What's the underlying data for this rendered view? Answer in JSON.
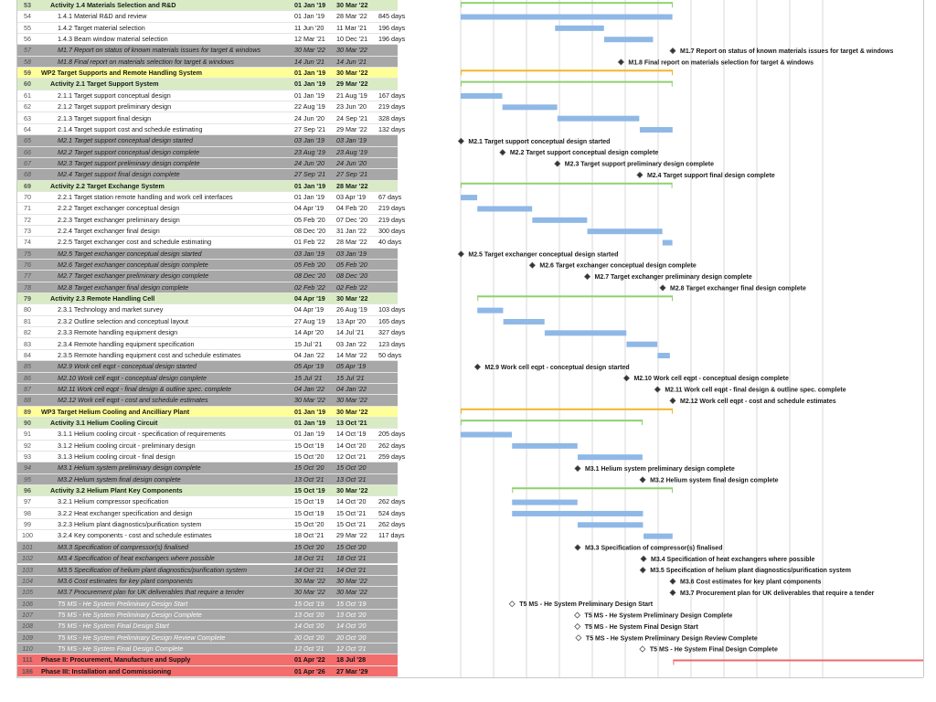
{
  "rows": [
    {
      "id": "53",
      "name": "Activity 1.4 Materials Selection and R&D",
      "start": "01 Jan '19",
      "finish": "30 Mar '22",
      "dur": "",
      "kind": "activity",
      "lvl": 1
    },
    {
      "id": "54",
      "name": "1.4.1 Material R&D and review",
      "start": "01 Jan '19",
      "finish": "28 Mar '22",
      "dur": "845 days",
      "kind": "task",
      "lvl": 2
    },
    {
      "id": "55",
      "name": "1.4.2 Target material selection",
      "start": "11 Jun '20",
      "finish": "11 Mar '21",
      "dur": "196 days",
      "kind": "task",
      "lvl": 2
    },
    {
      "id": "56",
      "name": "1.4.3 Beam window material selection",
      "start": "12 Mar '21",
      "finish": "10 Dec '21",
      "dur": "196 days",
      "kind": "task",
      "lvl": 2
    },
    {
      "id": "57",
      "name": "M1.7 Report on status of known materials issues for target & windows",
      "start": "30 Mar '22",
      "finish": "30 Mar '22",
      "dur": "",
      "kind": "ms",
      "lvl": 2
    },
    {
      "id": "58",
      "name": "M1.8 Final report on materials selection for target & windows",
      "start": "14 Jun '21",
      "finish": "14 Jun '21",
      "dur": "",
      "kind": "ms",
      "lvl": 2
    },
    {
      "id": "59",
      "name": "WP2 Target Supports and Remote Handling System",
      "start": "01 Jan '19",
      "finish": "30 Mar '22",
      "dur": "",
      "kind": "wp",
      "lvl": 0
    },
    {
      "id": "60",
      "name": "Activity 2.1 Target Support System",
      "start": "01 Jan '19",
      "finish": "29 Mar '22",
      "dur": "",
      "kind": "activity",
      "lvl": 1
    },
    {
      "id": "61",
      "name": "2.1.1 Target support conceptual design",
      "start": "01 Jan '19",
      "finish": "21 Aug '19",
      "dur": "167 days",
      "kind": "task",
      "lvl": 2
    },
    {
      "id": "62",
      "name": "2.1.2 Target support preliminary design",
      "start": "22 Aug '19",
      "finish": "23 Jun '20",
      "dur": "219 days",
      "kind": "task",
      "lvl": 2
    },
    {
      "id": "63",
      "name": "2.1.3 Target support final design",
      "start": "24 Jun '20",
      "finish": "24 Sep '21",
      "dur": "328 days",
      "kind": "task",
      "lvl": 2
    },
    {
      "id": "64",
      "name": "2.1.4 Target support cost and schedule estimating",
      "start": "27 Sep '21",
      "finish": "29 Mar '22",
      "dur": "132 days",
      "kind": "task",
      "lvl": 2
    },
    {
      "id": "65",
      "name": "M2.1 Target support conceptual design started",
      "start": "03 Jan '19",
      "finish": "03 Jan '19",
      "dur": "",
      "kind": "ms",
      "lvl": 2
    },
    {
      "id": "66",
      "name": "M2.2 Target support conceptual design complete",
      "start": "23 Aug '19",
      "finish": "23 Aug '19",
      "dur": "",
      "kind": "ms",
      "lvl": 2
    },
    {
      "id": "67",
      "name": "M2.3 Target support preliminary design complete",
      "start": "24 Jun '20",
      "finish": "24 Jun '20",
      "dur": "",
      "kind": "ms",
      "lvl": 2
    },
    {
      "id": "68",
      "name": "M2.4 Target support final design complete",
      "start": "27 Sep '21",
      "finish": "27 Sep '21",
      "dur": "",
      "kind": "ms",
      "lvl": 2
    },
    {
      "id": "69",
      "name": "Activity 2.2 Target Exchange System",
      "start": "01 Jan '19",
      "finish": "28 Mar '22",
      "dur": "",
      "kind": "activity",
      "lvl": 1
    },
    {
      "id": "70",
      "name": "2.2.1 Target station remote handling and work cell interfaces",
      "start": "01 Jan '19",
      "finish": "03 Apr '19",
      "dur": "67 days",
      "kind": "task",
      "lvl": 2
    },
    {
      "id": "71",
      "name": "2.2.2 Target exchanger conceptual design",
      "start": "04 Apr '19",
      "finish": "04 Feb '20",
      "dur": "219 days",
      "kind": "task",
      "lvl": 2
    },
    {
      "id": "72",
      "name": "2.2.3 Target exchanger preliminary design",
      "start": "05 Feb '20",
      "finish": "07 Dec '20",
      "dur": "219 days",
      "kind": "task",
      "lvl": 2
    },
    {
      "id": "73",
      "name": "2.2.4 Target exchanger final design",
      "start": "08 Dec '20",
      "finish": "31 Jan '22",
      "dur": "300 days",
      "kind": "task",
      "lvl": 2
    },
    {
      "id": "74",
      "name": "2.2.5 Target exchanger cost and schedule estimating",
      "start": "01 Feb '22",
      "finish": "28 Mar '22",
      "dur": "40 days",
      "kind": "task",
      "lvl": 2
    },
    {
      "id": "75",
      "name": "M2.5 Target exchanger conceptual design started",
      "start": "03 Jan '19",
      "finish": "03 Jan '19",
      "dur": "",
      "kind": "ms",
      "lvl": 2
    },
    {
      "id": "76",
      "name": "M2.6 Target exchanger conceptual design complete",
      "start": "05 Feb '20",
      "finish": "05 Feb '20",
      "dur": "",
      "kind": "ms",
      "lvl": 2
    },
    {
      "id": "77",
      "name": "M2.7 Target exchanger preliminary design complete",
      "start": "08 Dec '20",
      "finish": "08 Dec '20",
      "dur": "",
      "kind": "ms",
      "lvl": 2
    },
    {
      "id": "78",
      "name": "M2.8 Target exchanger final design complete",
      "start": "02 Feb '22",
      "finish": "02 Feb '22",
      "dur": "",
      "kind": "ms",
      "lvl": 2
    },
    {
      "id": "79",
      "name": "Activity 2.3 Remote Handling Cell",
      "start": "04 Apr '19",
      "finish": "30 Mar '22",
      "dur": "",
      "kind": "activity",
      "lvl": 1
    },
    {
      "id": "80",
      "name": "2.3.1 Technology and market survey",
      "start": "04 Apr '19",
      "finish": "26 Aug '19",
      "dur": "103 days",
      "kind": "task",
      "lvl": 2
    },
    {
      "id": "81",
      "name": "2.3.2 Outline selection and conceptual layout",
      "start": "27 Aug '19",
      "finish": "13 Apr '20",
      "dur": "165 days",
      "kind": "task",
      "lvl": 2
    },
    {
      "id": "82",
      "name": "2.3.3 Remote handling equipment design",
      "start": "14 Apr '20",
      "finish": "14 Jul '21",
      "dur": "327 days",
      "kind": "task",
      "lvl": 2
    },
    {
      "id": "83",
      "name": "2.3.4 Remote handling equipment specification",
      "start": "15 Jul '21",
      "finish": "03 Jan '22",
      "dur": "123 days",
      "kind": "task",
      "lvl": 2
    },
    {
      "id": "84",
      "name": "2.3.5 Remote handling equipment cost and schedule estimates",
      "start": "04 Jan '22",
      "finish": "14 Mar '22",
      "dur": "50 days",
      "kind": "task",
      "lvl": 2
    },
    {
      "id": "85",
      "name": "M2.9 Work cell eqpt - conceptual design started",
      "start": "05 Apr '19",
      "finish": "05 Apr '19",
      "dur": "",
      "kind": "ms",
      "lvl": 2
    },
    {
      "id": "86",
      "name": "M2.10 Work cell eqpt - conceptual design complete",
      "start": "15 Jul '21",
      "finish": "15 Jul '21",
      "dur": "",
      "kind": "ms",
      "lvl": 2
    },
    {
      "id": "87",
      "name": "M2.11 Work cell eqpt - final design & outline spec. complete",
      "start": "04 Jan '22",
      "finish": "04 Jan '22",
      "dur": "",
      "kind": "ms",
      "lvl": 2
    },
    {
      "id": "88",
      "name": "M2.12 Work cell eqpt - cost and schedule estimates",
      "start": "30 Mar '22",
      "finish": "30 Mar '22",
      "dur": "",
      "kind": "ms",
      "lvl": 2
    },
    {
      "id": "89",
      "name": "WP3 Target Helium Cooling and Ancilliary Plant",
      "start": "01 Jan '19",
      "finish": "30 Mar '22",
      "dur": "",
      "kind": "wp",
      "lvl": 0
    },
    {
      "id": "90",
      "name": "Activity 3.1 Helium Cooling Circuit",
      "start": "01 Jan '19",
      "finish": "13 Oct '21",
      "dur": "",
      "kind": "activity",
      "lvl": 1
    },
    {
      "id": "91",
      "name": "3.1.1 Helium cooling circuit - specification of requirements",
      "start": "01 Jan '19",
      "finish": "14 Oct '19",
      "dur": "205 days",
      "kind": "task",
      "lvl": 2
    },
    {
      "id": "92",
      "name": "3.1.2 Helium cooling circuit - preliminary design",
      "start": "15 Oct '19",
      "finish": "14 Oct '20",
      "dur": "262 days",
      "kind": "task",
      "lvl": 2
    },
    {
      "id": "93",
      "name": "3.1.3 Helium cooling circuit - final design",
      "start": "15 Oct '20",
      "finish": "12 Oct '21",
      "dur": "259 days",
      "kind": "task",
      "lvl": 2
    },
    {
      "id": "94",
      "name": "M3.1 Helium system preliminary design complete",
      "start": "15 Oct '20",
      "finish": "15 Oct '20",
      "dur": "",
      "kind": "ms",
      "lvl": 2
    },
    {
      "id": "95",
      "name": "M3.2 Helium system final design complete",
      "start": "13 Oct '21",
      "finish": "13 Oct '21",
      "dur": "",
      "kind": "ms",
      "lvl": 2
    },
    {
      "id": "96",
      "name": "Activity 3.2 Helium Plant Key Components",
      "start": "15 Oct '19",
      "finish": "30 Mar '22",
      "dur": "",
      "kind": "activity",
      "lvl": 1
    },
    {
      "id": "97",
      "name": "3.2.1 Helium compressor specification",
      "start": "15 Oct '19",
      "finish": "14 Oct '20",
      "dur": "262 days",
      "kind": "task",
      "lvl": 2
    },
    {
      "id": "98",
      "name": "3.2.2 Heat exchanger specification and design",
      "start": "15 Oct '19",
      "finish": "15 Oct '21",
      "dur": "524 days",
      "kind": "task",
      "lvl": 2
    },
    {
      "id": "99",
      "name": "3.2.3 Helium plant diagnostics/purification system",
      "start": "15 Oct '20",
      "finish": "15 Oct '21",
      "dur": "262 days",
      "kind": "task",
      "lvl": 2
    },
    {
      "id": "100",
      "name": "3.2.4 Key components - cost and schedule estimates",
      "start": "18 Oct '21",
      "finish": "29 Mar '22",
      "dur": "117 days",
      "kind": "task",
      "lvl": 2
    },
    {
      "id": "101",
      "name": "M3.3 Specification of compressor(s) finalised",
      "start": "15 Oct '20",
      "finish": "15 Oct '20",
      "dur": "",
      "kind": "ms",
      "lvl": 2
    },
    {
      "id": "102",
      "name": "M3.4 Specification of heat exchangers where possible",
      "start": "18 Oct '21",
      "finish": "18 Oct '21",
      "dur": "",
      "kind": "ms",
      "lvl": 2
    },
    {
      "id": "103",
      "name": "M3.5 Specification of helium plant diagnostics/purification system",
      "start": "14 Oct '21",
      "finish": "14 Oct '21",
      "dur": "",
      "kind": "ms",
      "lvl": 2
    },
    {
      "id": "104",
      "name": "M3.6 Cost estimates for key plant components",
      "start": "30 Mar '22",
      "finish": "30 Mar '22",
      "dur": "",
      "kind": "ms",
      "lvl": 2
    },
    {
      "id": "105",
      "name": "M3.7 Procurement plan for UK deliverables that require a tender",
      "start": "30 Mar '22",
      "finish": "30 Mar '22",
      "dur": "",
      "kind": "ms",
      "lvl": 2
    },
    {
      "id": "106",
      "name": "T5 MS - He System Preliminary Design Start",
      "start": "15 Oct '19",
      "finish": "15 Oct '19",
      "dur": "",
      "kind": "ts",
      "lvl": 2
    },
    {
      "id": "107",
      "name": "T5 MS - He System Preliminary Design Complete",
      "start": "13 Oct '20",
      "finish": "13 Oct '20",
      "dur": "",
      "kind": "ts",
      "lvl": 2
    },
    {
      "id": "108",
      "name": "T5 MS - He System Final Design Start",
      "start": "14 Oct '20",
      "finish": "14 Oct '20",
      "dur": "",
      "kind": "ts",
      "lvl": 2
    },
    {
      "id": "109",
      "name": "T5 MS - He System Preliminary Design Review Complete",
      "start": "20 Oct '20",
      "finish": "20 Oct '20",
      "dur": "",
      "kind": "ts",
      "lvl": 2
    },
    {
      "id": "110",
      "name": "T5 MS - He System Final Design Complete",
      "start": "12 Oct '21",
      "finish": "12 Oct '21",
      "dur": "",
      "kind": "ts",
      "lvl": 2
    },
    {
      "id": "111",
      "name": "Phase II: Procurement, Manufacture and Supply",
      "start": "01 Apr '22",
      "finish": "18 Jul '28",
      "dur": "",
      "kind": "phase",
      "lvl": 0
    },
    {
      "id": "186",
      "name": "Phase III: Installation and Commissioning",
      "start": "01 Apr '26",
      "finish": "27 Mar '29",
      "dur": "",
      "kind": "phase",
      "lvl": 0
    }
  ],
  "colors": {
    "task_bar": "#8fb8e6",
    "activity_bar": "#8fd16f",
    "wp_bar": "#f2b629",
    "phase_bar": "#f06a6a",
    "link": "#2e6fc4",
    "grid": "#d9d9d9"
  }
}
